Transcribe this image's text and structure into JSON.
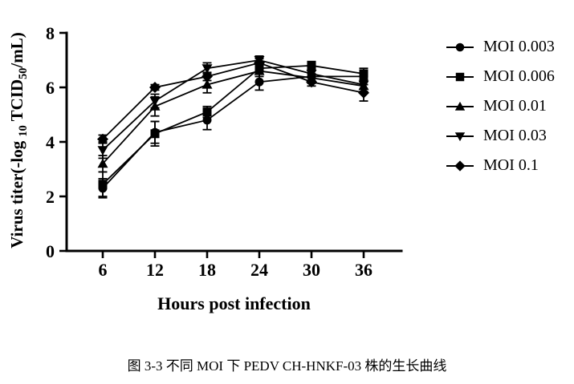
{
  "figure": {
    "caption": "图 3-3  不同 MOI 下 PEDV CH-HNKF-03 株的生长曲线"
  },
  "chart_data": {
    "type": "line",
    "title": "",
    "xlabel": "Hours post infection",
    "ylabel": "Virus titer(-log10 TCID50/mL)",
    "ylabel_parts": [
      {
        "text": "Virus titer(-log ",
        "sub": false
      },
      {
        "text": "10",
        "sub": true
      },
      {
        "text": " TCID",
        "sub": false
      },
      {
        "text": "50",
        "sub": true
      },
      {
        "text": "/mL)",
        "sub": false
      }
    ],
    "x": [
      6,
      12,
      18,
      24,
      30,
      36
    ],
    "xtick_labels": [
      "6",
      "12",
      "18",
      "24",
      "30",
      "36"
    ],
    "yticks": [
      0,
      2,
      4,
      6,
      8
    ],
    "ylim": [
      0,
      8
    ],
    "grid": false,
    "legend_position": "right",
    "line_color": "#000000",
    "series": [
      {
        "name": "MOI 0.003",
        "marker": "circle",
        "values": [
          2.3,
          4.35,
          4.8,
          6.2,
          6.4,
          6.4
        ],
        "errors": [
          0.35,
          0.4,
          0.35,
          0.3,
          0.25,
          0.2
        ]
      },
      {
        "name": "MOI 0.006",
        "marker": "square",
        "values": [
          2.45,
          4.3,
          5.1,
          6.7,
          6.8,
          6.5
        ],
        "errors": [
          0.45,
          0.45,
          0.2,
          0.2,
          0.15,
          0.2
        ]
      },
      {
        "name": "MOI 0.01",
        "marker": "triangle-up",
        "values": [
          3.2,
          5.3,
          6.1,
          6.6,
          6.35,
          6.05
        ],
        "errors": [
          0.3,
          0.35,
          0.3,
          0.2,
          0.15,
          0.2
        ]
      },
      {
        "name": "MOI 0.03",
        "marker": "triangle-down",
        "values": [
          3.7,
          5.5,
          6.7,
          7.0,
          6.5,
          6.1
        ],
        "errors": [
          0.3,
          0.25,
          0.2,
          0.15,
          0.15,
          0.15
        ]
      },
      {
        "name": "MOI 0.1",
        "marker": "diamond",
        "values": [
          4.1,
          6.0,
          6.4,
          6.9,
          6.2,
          5.8
        ],
        "errors": [
          0.15,
          0.1,
          0.15,
          0.15,
          0.15,
          0.3
        ]
      }
    ]
  }
}
